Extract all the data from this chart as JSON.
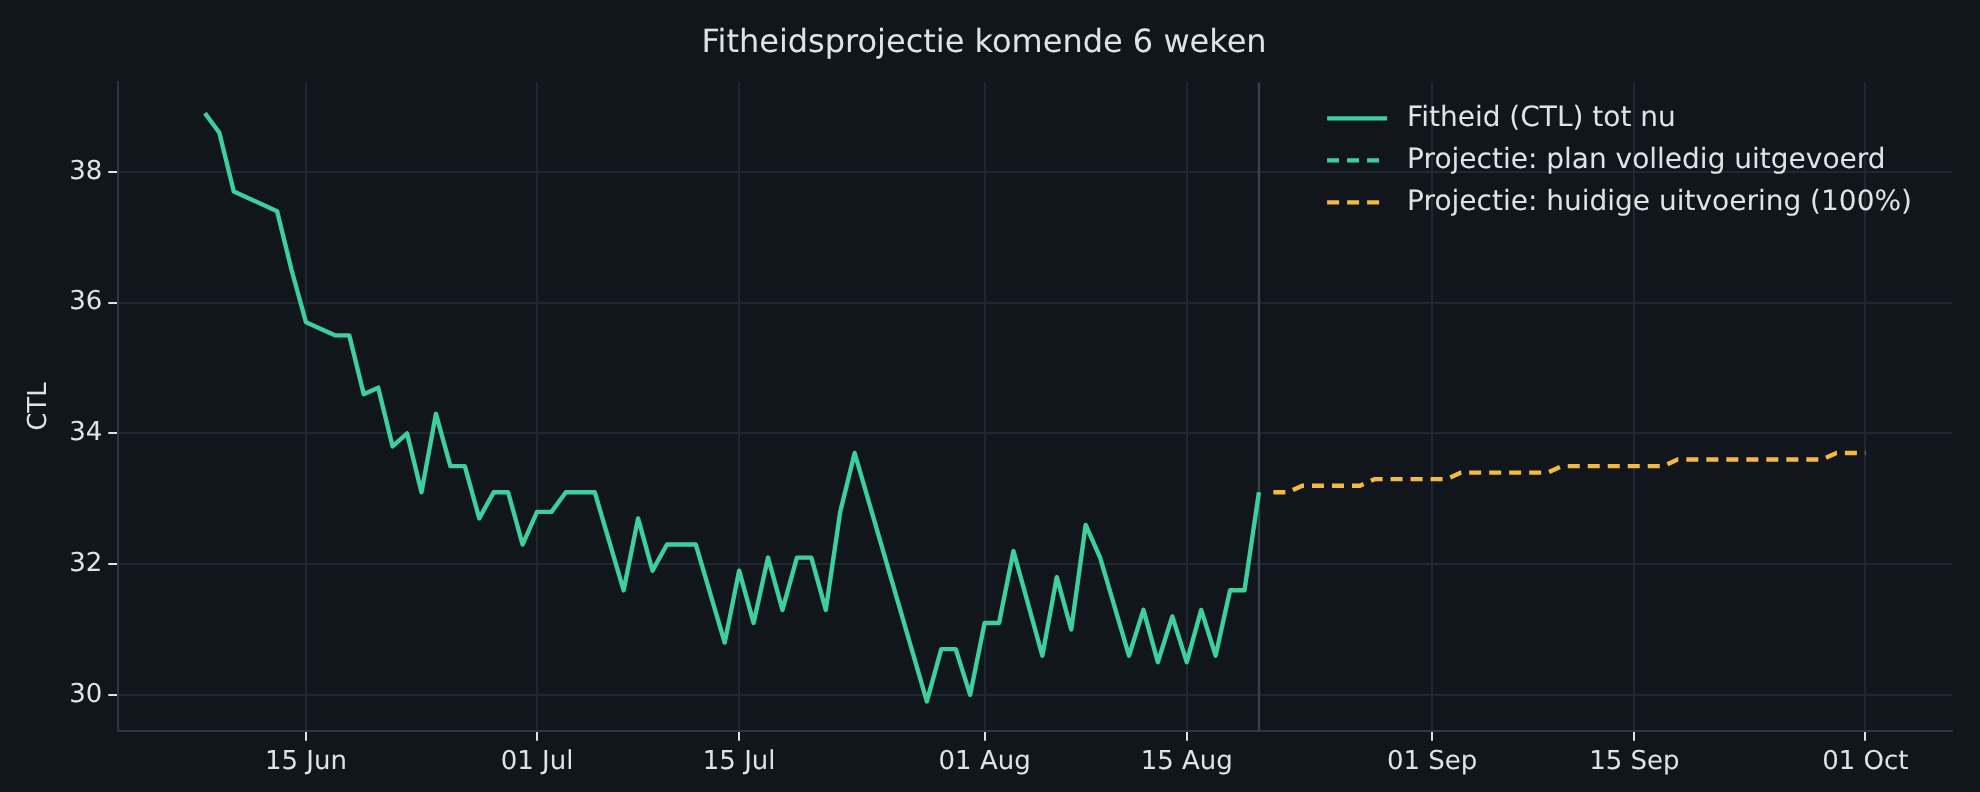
{
  "chart_data": {
    "type": "line",
    "title": "Fitheidsprojectie komende 6 weken",
    "ylabel": "CTL",
    "xlim": [
      "--06-02",
      "--10-07"
    ],
    "xticks": [
      {
        "value": "--06-15",
        "label": "15 Jun"
      },
      {
        "value": "--07-01",
        "label": "01 Jul"
      },
      {
        "value": "--07-15",
        "label": "15 Jul"
      },
      {
        "value": "--08-01",
        "label": "01 Aug"
      },
      {
        "value": "--08-15",
        "label": "15 Aug"
      },
      {
        "value": "--09-01",
        "label": "01 Sep"
      },
      {
        "value": "--09-15",
        "label": "15 Sep"
      },
      {
        "value": "--10-01",
        "label": "01 Oct"
      }
    ],
    "ylim": [
      29.45,
      39.37
    ],
    "yticks": [
      30,
      32,
      34,
      36,
      38
    ],
    "grid": true,
    "legend": "top right",
    "ref_lines": [
      {
        "axis": "x",
        "value": "--08-20",
        "label": null,
        "color": "#3a424e"
      }
    ],
    "series": [
      {
        "name": "Fitheid (CTL) tot nu",
        "color": "#3ecf9f",
        "line_style": "solid",
        "x": [
          "--06-08",
          "--06-09",
          "--06-10",
          "--06-13",
          "--06-14",
          "--06-15",
          "--06-17",
          "--06-18",
          "--06-19",
          "--06-20",
          "--06-21",
          "--06-22",
          "--06-23",
          "--06-24",
          "--06-25",
          "--06-26",
          "--06-27",
          "--06-28",
          "--06-29",
          "--06-30",
          "--07-01",
          "--07-02",
          "--07-03",
          "--07-05",
          "--07-07",
          "--07-08",
          "--07-09",
          "--07-10",
          "--07-12",
          "--07-14",
          "--07-15",
          "--07-16",
          "--07-17",
          "--07-18",
          "--07-19",
          "--07-20",
          "--07-21",
          "--07-22",
          "--07-23",
          "--07-28",
          "--07-29",
          "--07-30",
          "--07-31",
          "--08-01",
          "--08-02",
          "--08-03",
          "--08-05",
          "--08-06",
          "--08-07",
          "--08-08",
          "--08-09",
          "--08-11",
          "--08-12",
          "--08-13",
          "--08-14",
          "--08-15",
          "--08-16",
          "--08-17",
          "--08-18",
          "--08-19",
          "--08-20"
        ],
        "values": [
          38.9,
          38.6,
          37.7,
          37.4,
          36.5,
          35.7,
          35.5,
          35.5,
          34.6,
          34.7,
          33.8,
          34.0,
          33.1,
          34.3,
          33.5,
          33.5,
          32.7,
          33.1,
          33.1,
          32.3,
          32.8,
          32.8,
          33.1,
          33.1,
          31.6,
          32.7,
          31.9,
          32.3,
          32.3,
          30.8,
          31.9,
          31.1,
          32.1,
          31.3,
          32.1,
          32.1,
          31.3,
          32.8,
          33.7,
          29.9,
          30.7,
          30.7,
          30.0,
          31.1,
          31.1,
          32.2,
          30.6,
          31.8,
          31.0,
          32.6,
          32.1,
          30.6,
          31.3,
          30.5,
          31.2,
          30.5,
          31.3,
          30.6,
          31.6,
          31.6,
          33.1
        ]
      },
      {
        "name": "Projectie: plan volledig uitgevoerd",
        "color": "#3ecf9f",
        "line_style": "dashed"
      },
      {
        "name": "Projectie: huidige uitvoering (100%)",
        "color": "#f5b942",
        "line_style": "dashed",
        "x": [
          "--08-21",
          "--08-22",
          "--08-23",
          "--08-27",
          "--08-28",
          "--09-02",
          "--09-03",
          "--09-09",
          "--09-10",
          "--09-17",
          "--09-18",
          "--09-28",
          "--09-29",
          "--10-01"
        ],
        "values": [
          33.1,
          33.1,
          33.2,
          33.2,
          33.3,
          33.3,
          33.4,
          33.4,
          33.5,
          33.5,
          33.6,
          33.6,
          33.7,
          33.7
        ]
      }
    ]
  }
}
